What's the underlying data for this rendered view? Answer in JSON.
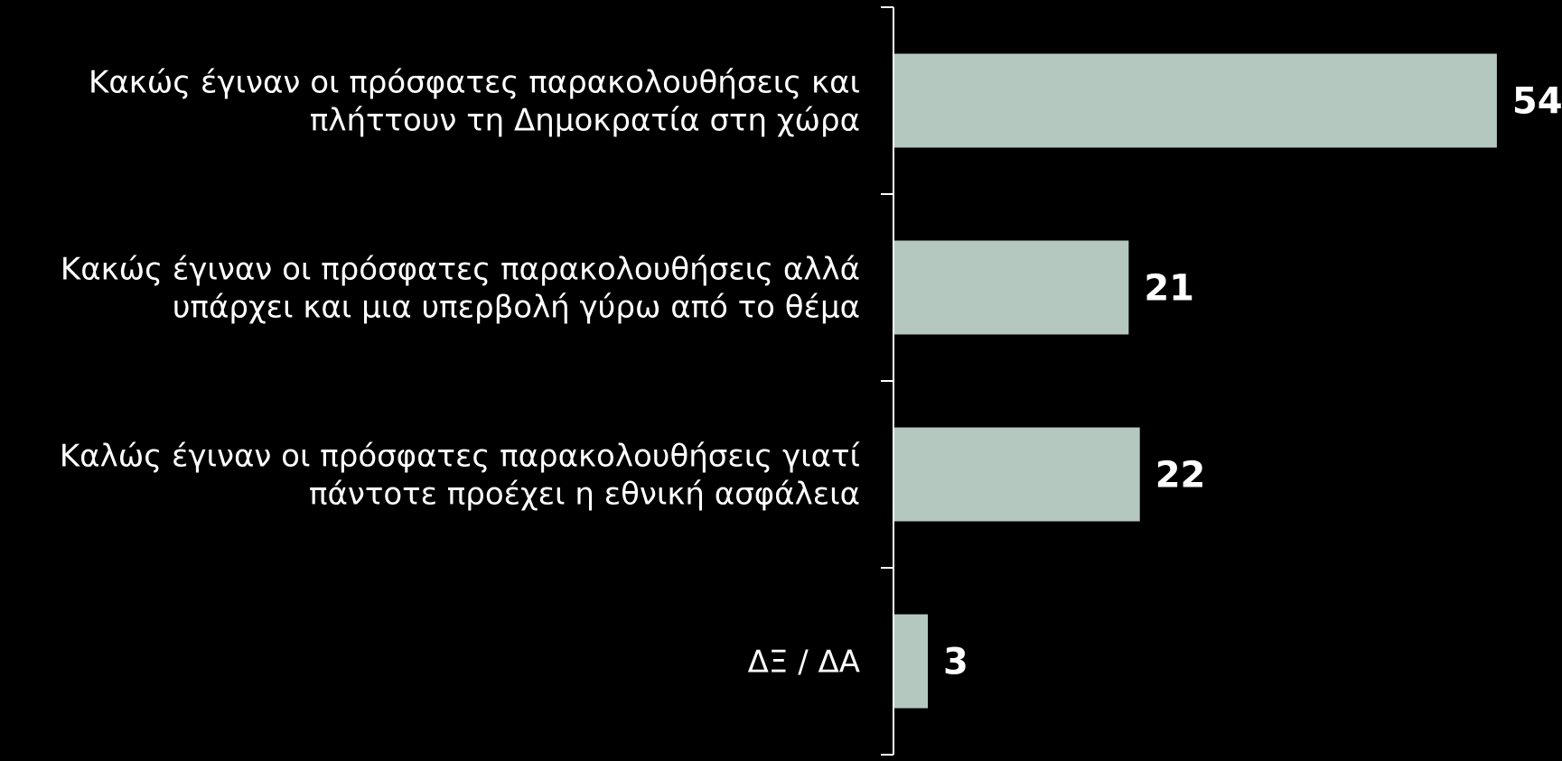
{
  "chart_data": {
    "type": "bar",
    "orientation": "horizontal",
    "categories": [
      [
        "Κακώς έγιναν οι πρόσφατες παρακολουθήσεις και",
        "πλήττουν τη Δημοκρατία στη χώρα"
      ],
      [
        "Κακώς έγιναν οι πρόσφατες παρακολουθήσεις αλλά",
        "υπάρχει και μια υπερβολή γύρω από το θέμα"
      ],
      [
        "Καλώς έγιναν οι πρόσφατες παρακολουθήσεις γιατί",
        "πάντοτε προέχει η εθνική ασφάλεια"
      ],
      [
        "ΔΞ / ΔΑ"
      ]
    ],
    "values": [
      54,
      21,
      22,
      3
    ],
    "data_labels": [
      "54",
      "21",
      "22",
      "3"
    ],
    "bar_color": "#b4c8bf",
    "axis_color": "#ffffff",
    "background_color": "#000000",
    "text_color": "#ffffff",
    "grid": false,
    "legend": "none",
    "xlim": [
      0,
      54
    ]
  }
}
